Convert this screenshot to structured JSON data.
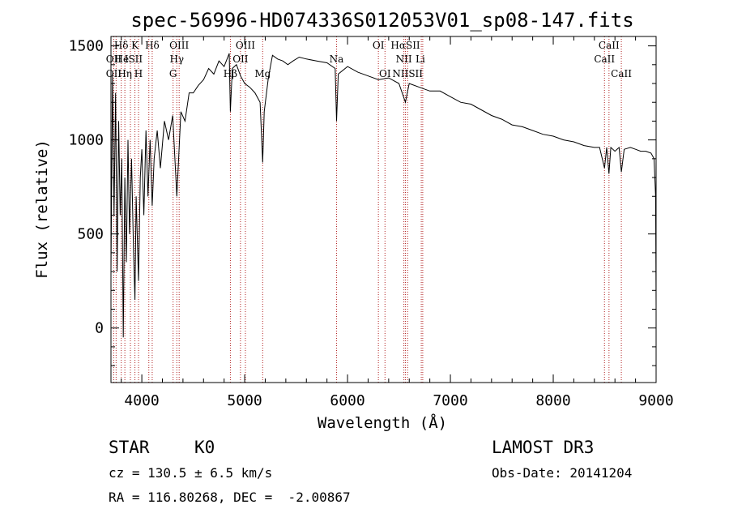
{
  "chart_data": {
    "type": "line",
    "title": "spec-56996-HD074336S012053V01_sp08-147.fits",
    "xlabel": "Wavelength (Å)",
    "ylabel": "Flux (relative)",
    "xlim": [
      3700,
      9000
    ],
    "ylim": [
      -290,
      1550
    ],
    "xticks": [
      4000,
      5000,
      6000,
      7000,
      8000,
      9000
    ],
    "yticks": [
      0,
      500,
      1000,
      1500
    ],
    "series": [
      {
        "name": "flux",
        "x": [
          3700,
          3715,
          3730,
          3745,
          3760,
          3775,
          3790,
          3805,
          3820,
          3835,
          3850,
          3865,
          3880,
          3900,
          3920,
          3933,
          3945,
          3968,
          3985,
          4000,
          4020,
          4040,
          4060,
          4080,
          4101,
          4120,
          4150,
          4180,
          4220,
          4260,
          4300,
          4340,
          4380,
          4420,
          4460,
          4500,
          4550,
          4600,
          4650,
          4700,
          4750,
          4800,
          4850,
          4861,
          4880,
          4920,
          4960,
          5000,
          5050,
          5100,
          5150,
          5175,
          5190,
          5230,
          5270,
          5320,
          5370,
          5420,
          5470,
          5530,
          5600,
          5700,
          5800,
          5880,
          5893,
          5910,
          6000,
          6100,
          6200,
          6300,
          6400,
          6500,
          6563,
          6600,
          6700,
          6800,
          6900,
          7000,
          7100,
          7200,
          7300,
          7400,
          7500,
          7600,
          7700,
          7800,
          7900,
          8000,
          8100,
          8200,
          8300,
          8400,
          8450,
          8498,
          8520,
          8542,
          8560,
          8600,
          8640,
          8662,
          8690,
          8750,
          8800,
          8850,
          8900,
          8950,
          8980,
          8995,
          9000
        ],
        "y": [
          300,
          1350,
          600,
          1250,
          300,
          1100,
          600,
          900,
          -50,
          800,
          350,
          1000,
          500,
          900,
          400,
          150,
          700,
          250,
          800,
          950,
          600,
          1050,
          700,
          1000,
          650,
          900,
          1050,
          850,
          1100,
          1000,
          1130,
          700,
          1150,
          1100,
          1250,
          1250,
          1290,
          1320,
          1380,
          1350,
          1420,
          1390,
          1460,
          1150,
          1380,
          1400,
          1340,
          1300,
          1280,
          1250,
          1200,
          880,
          1150,
          1330,
          1450,
          1430,
          1420,
          1400,
          1420,
          1440,
          1430,
          1420,
          1410,
          1380,
          1100,
          1350,
          1390,
          1360,
          1340,
          1320,
          1330,
          1300,
          1200,
          1300,
          1280,
          1260,
          1260,
          1230,
          1200,
          1190,
          1160,
          1130,
          1110,
          1080,
          1070,
          1050,
          1030,
          1020,
          1000,
          990,
          970,
          960,
          960,
          850,
          960,
          820,
          960,
          940,
          960,
          830,
          950,
          960,
          950,
          940,
          940,
          930,
          900,
          700,
          120
        ]
      }
    ],
    "line_labels": [
      {
        "text": "Hδ",
        "x": 3800,
        "row": 1
      },
      {
        "text": "OII",
        "x": 3727,
        "row": 2
      },
      {
        "text": "OII",
        "x": 3727,
        "row": 3
      },
      {
        "text": "He",
        "x": 3805,
        "row": 2
      },
      {
        "text": "Hη",
        "x": 3835,
        "row": 3
      },
      {
        "text": "K",
        "x": 3933,
        "row": 1
      },
      {
        "text": "ISII",
        "x": 3920,
        "row": 2
      },
      {
        "text": "H",
        "x": 3968,
        "row": 3
      },
      {
        "text": "Hδ",
        "x": 4101,
        "row": 1
      },
      {
        "text": "OIII",
        "x": 4363,
        "row": 1
      },
      {
        "text": "Hγ",
        "x": 4340,
        "row": 2
      },
      {
        "text": "G",
        "x": 4304,
        "row": 3
      },
      {
        "text": "OIII",
        "x": 5007,
        "row": 1
      },
      {
        "text": "OII",
        "x": 4959,
        "row": 2
      },
      {
        "text": "Hβ",
        "x": 4861,
        "row": 3
      },
      {
        "text": "Mg",
        "x": 5175,
        "row": 3
      },
      {
        "text": "Na",
        "x": 5893,
        "row": 2
      },
      {
        "text": "OI",
        "x": 6300,
        "row": 1
      },
      {
        "text": "OI",
        "x": 6364,
        "row": 3
      },
      {
        "text": "HαSII",
        "x": 6563,
        "row": 1
      },
      {
        "text": "NII",
        "x": 6548,
        "row": 2
      },
      {
        "text": "NIISII",
        "x": 6584,
        "row": 3
      },
      {
        "text": "Li",
        "x": 6708,
        "row": 2
      },
      {
        "text": "CaII",
        "x": 8542,
        "row": 1
      },
      {
        "text": "CaII",
        "x": 8498,
        "row": 2
      },
      {
        "text": "CaII",
        "x": 8662,
        "row": 3
      }
    ],
    "line_positions": [
      3727,
      3750,
      3800,
      3835,
      3889,
      3933,
      3968,
      4068,
      4101,
      4304,
      4340,
      4363,
      4861,
      4959,
      5007,
      5175,
      5893,
      6300,
      6364,
      6548,
      6563,
      6584,
      6717,
      6731,
      8498,
      8542,
      8662
    ]
  },
  "info": {
    "object_class": "STAR",
    "subclass": "K0",
    "survey": "LAMOST DR3",
    "cz": "cz = 130.5 ± 6.5 km/s",
    "obs_date": "Obs-Date: 20141204",
    "coords": "RA = 116.80268, DEC =  -2.00867"
  },
  "colors": {
    "spectrum": "#000000",
    "line_marker": "#b22222",
    "axes": "#000000",
    "background": "#ffffff"
  }
}
